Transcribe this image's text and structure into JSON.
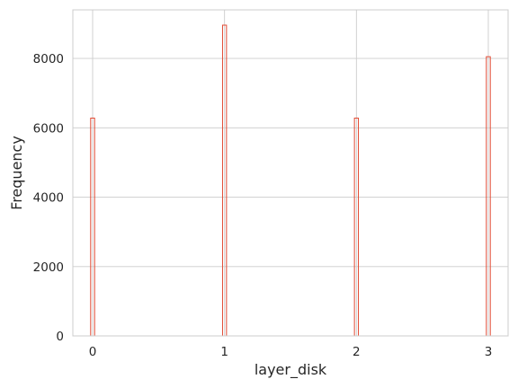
{
  "chart_data": {
    "type": "bar",
    "style": "histogram-step",
    "categories": [
      "0",
      "1",
      "2",
      "3"
    ],
    "x": [
      0,
      1,
      2,
      3
    ],
    "values": [
      6280,
      8960,
      6280,
      8050
    ],
    "xlabel": "layer_disk",
    "ylabel": "Frequency",
    "xlim": [
      -0.15,
      3.15
    ],
    "ylim": [
      0,
      9400
    ],
    "xticks": [
      0,
      1,
      2,
      3
    ],
    "yticks": [
      0,
      2000,
      4000,
      6000,
      8000
    ],
    "grid": true,
    "colors": {
      "bar_edge": "#e24a33",
      "grid": "#cccccc",
      "frame": "#cccccc",
      "text": "#262626"
    }
  }
}
